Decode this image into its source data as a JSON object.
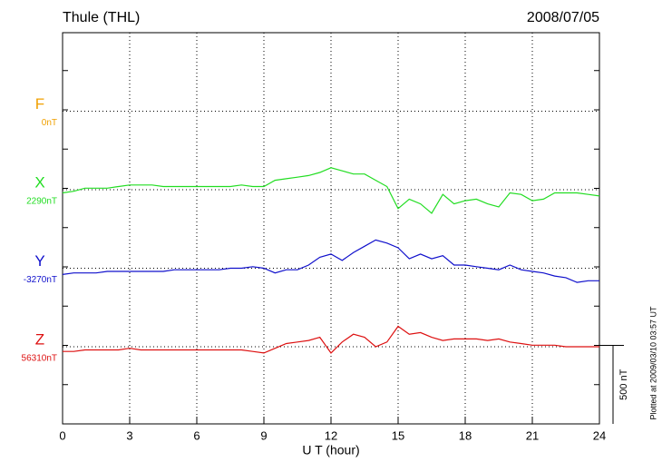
{
  "chart_data": {
    "type": "line",
    "title": "Thule (THL)",
    "date": "2008/07/05",
    "x_label": "U T (hour)",
    "xlim": [
      0,
      24
    ],
    "xticks": [
      0,
      3,
      6,
      9,
      12,
      15,
      18,
      21,
      24
    ],
    "scale_bar": {
      "value": 500,
      "label": "500 nT"
    },
    "note": "Plotted at 2009/03/10 03:57 UT",
    "x": [
      0,
      0.5,
      1,
      1.5,
      2,
      2.5,
      3,
      3.5,
      4,
      4.5,
      5,
      5.5,
      6,
      6.5,
      7,
      7.5,
      8,
      8.5,
      9,
      9.5,
      10,
      10.5,
      11,
      11.5,
      12,
      12.5,
      13,
      13.5,
      14,
      14.5,
      15,
      15.5,
      16,
      16.5,
      17,
      17.5,
      18,
      18.5,
      19,
      19.5,
      20,
      20.5,
      21,
      21.5,
      22,
      22.5,
      23,
      23.5,
      24
    ],
    "series": [
      {
        "name": "F",
        "color": "#f0a000",
        "baseline": {
          "value": 0,
          "label": "0nT"
        }
      },
      {
        "name": "X",
        "color": "#22dd22",
        "baseline": {
          "value": 2290,
          "label": "2290nT"
        },
        "values": [
          2270,
          2280,
          2300,
          2300,
          2300,
          2310,
          2320,
          2320,
          2320,
          2310,
          2310,
          2310,
          2310,
          2310,
          2310,
          2310,
          2320,
          2310,
          2310,
          2350,
          2360,
          2370,
          2380,
          2400,
          2430,
          2410,
          2390,
          2390,
          2350,
          2310,
          2170,
          2230,
          2200,
          2140,
          2260,
          2200,
          2220,
          2230,
          2200,
          2180,
          2270,
          2260,
          2220,
          2230,
          2270,
          2270,
          2270,
          2260,
          2250
        ]
      },
      {
        "name": "Y",
        "color": "#1010cc",
        "baseline": {
          "value": -3270,
          "label": "-3270nT"
        },
        "values": [
          -3310,
          -3300,
          -3300,
          -3300,
          -3290,
          -3290,
          -3290,
          -3290,
          -3290,
          -3290,
          -3280,
          -3280,
          -3280,
          -3280,
          -3280,
          -3270,
          -3270,
          -3260,
          -3270,
          -3300,
          -3280,
          -3280,
          -3250,
          -3200,
          -3180,
          -3220,
          -3170,
          -3130,
          -3090,
          -3110,
          -3140,
          -3210,
          -3180,
          -3210,
          -3190,
          -3250,
          -3250,
          -3260,
          -3270,
          -3280,
          -3250,
          -3280,
          -3290,
          -3300,
          -3320,
          -3330,
          -3360,
          -3350,
          -3350
        ]
      },
      {
        "name": "Z",
        "color": "#dd1010",
        "baseline": {
          "value": 56310,
          "label": "56310nT"
        },
        "values": [
          56280,
          56280,
          56290,
          56290,
          56290,
          56290,
          56300,
          56290,
          56290,
          56290,
          56290,
          56290,
          56290,
          56290,
          56290,
          56290,
          56290,
          56280,
          56270,
          56300,
          56330,
          56340,
          56350,
          56370,
          56270,
          56340,
          56390,
          56370,
          56310,
          56340,
          56440,
          56390,
          56400,
          56370,
          56350,
          56360,
          56360,
          56360,
          56350,
          56360,
          56340,
          56330,
          56320,
          56320,
          56320,
          56310,
          56310,
          56310,
          56310
        ]
      }
    ]
  }
}
